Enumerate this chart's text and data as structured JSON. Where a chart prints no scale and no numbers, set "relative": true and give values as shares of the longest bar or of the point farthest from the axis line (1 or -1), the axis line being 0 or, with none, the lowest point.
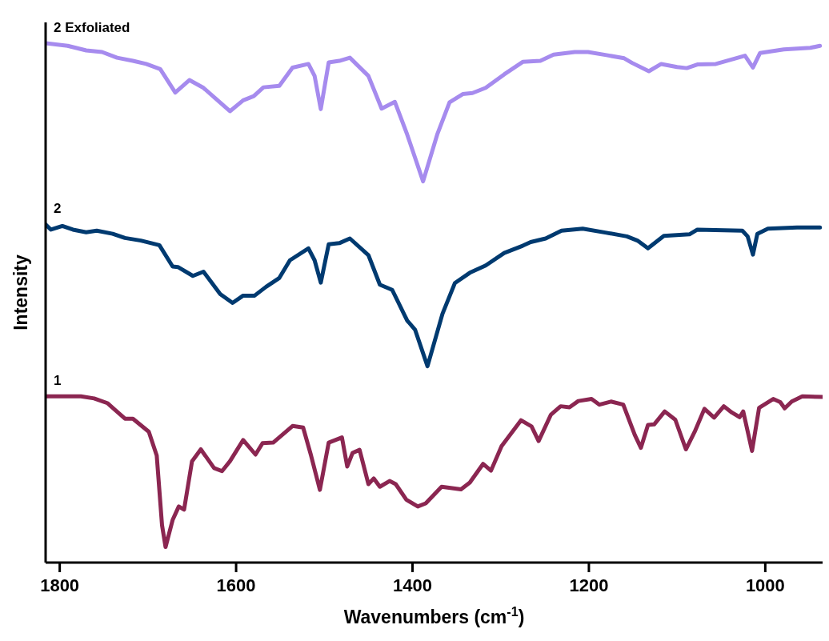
{
  "chart_data": {
    "type": "line",
    "relative": true,
    "xlabel": "Wavenumbers (cm$^{-1}$)",
    "ylabel": "Intensity",
    "xlim": [
      1816,
      935
    ],
    "xticks": [
      1800,
      1600,
      1400,
      1200,
      1000
    ],
    "marker": "none",
    "line_style": "solid",
    "tick_labels": "x",
    "series": [
      {
        "name": "2 Exfoliated",
        "color": "#a68bee",
        "x": [
          1816,
          1791,
          1770,
          1752,
          1735,
          1717,
          1702,
          1686,
          1669,
          1653,
          1637,
          1623,
          1607,
          1592,
          1580,
          1569,
          1551,
          1536,
          1518,
          1511,
          1504,
          1495,
          1483,
          1471,
          1450,
          1435,
          1420,
          1406,
          1388,
          1372,
          1358,
          1343,
          1332,
          1317,
          1296,
          1275,
          1255,
          1240,
          1216,
          1201,
          1180,
          1160,
          1151,
          1132,
          1118,
          1100,
          1089,
          1077,
          1056,
          1023,
          1014,
          1006,
          979,
          949,
          938
        ],
        "values": [
          1.0,
          0.995,
          0.986,
          0.983,
          0.972,
          0.966,
          0.96,
          0.95,
          0.905,
          0.929,
          0.914,
          0.893,
          0.869,
          0.89,
          0.898,
          0.915,
          0.918,
          0.953,
          0.96,
          0.937,
          0.873,
          0.963,
          0.966,
          0.972,
          0.937,
          0.874,
          0.887,
          0.824,
          0.734,
          0.824,
          0.886,
          0.902,
          0.904,
          0.914,
          0.94,
          0.964,
          0.966,
          0.978,
          0.983,
          0.983,
          0.977,
          0.971,
          0.962,
          0.946,
          0.96,
          0.954,
          0.952,
          0.959,
          0.96,
          0.976,
          0.953,
          0.981,
          0.988,
          0.991,
          0.995
        ]
      },
      {
        "name": "2",
        "color": "#003a70",
        "x": [
          1816,
          1810,
          1797,
          1785,
          1770,
          1758,
          1740,
          1726,
          1708,
          1687,
          1672,
          1666,
          1649,
          1637,
          1618,
          1604,
          1592,
          1579,
          1566,
          1551,
          1539,
          1518,
          1511,
          1504,
          1495,
          1483,
          1471,
          1450,
          1437,
          1423,
          1406,
          1397,
          1383,
          1366,
          1352,
          1335,
          1317,
          1296,
          1275,
          1266,
          1249,
          1231,
          1207,
          1180,
          1157,
          1145,
          1133,
          1115,
          1086,
          1077,
          1026,
          1020,
          1014,
          1009,
          997,
          964,
          938
        ],
        "values": [
          0.651,
          0.641,
          0.648,
          0.641,
          0.636,
          0.639,
          0.633,
          0.625,
          0.62,
          0.611,
          0.57,
          0.569,
          0.552,
          0.56,
          0.517,
          0.5,
          0.514,
          0.514,
          0.531,
          0.548,
          0.582,
          0.605,
          0.582,
          0.539,
          0.613,
          0.615,
          0.624,
          0.592,
          0.535,
          0.525,
          0.466,
          0.448,
          0.378,
          0.479,
          0.538,
          0.558,
          0.572,
          0.596,
          0.61,
          0.617,
          0.624,
          0.639,
          0.643,
          0.635,
          0.628,
          0.62,
          0.605,
          0.629,
          0.632,
          0.641,
          0.639,
          0.628,
          0.593,
          0.633,
          0.643,
          0.645,
          0.645
        ]
      },
      {
        "name": "1",
        "color": "#8b2651",
        "x": [
          1816,
          1776,
          1761,
          1746,
          1726,
          1717,
          1699,
          1690,
          1684,
          1680,
          1672,
          1665,
          1659,
          1650,
          1640,
          1625,
          1616,
          1607,
          1592,
          1578,
          1570,
          1558,
          1536,
          1524,
          1515,
          1505,
          1495,
          1480,
          1474,
          1468,
          1460,
          1450,
          1444,
          1437,
          1426,
          1419,
          1407,
          1394,
          1385,
          1367,
          1345,
          1335,
          1320,
          1311,
          1299,
          1277,
          1265,
          1257,
          1243,
          1232,
          1222,
          1212,
          1197,
          1188,
          1175,
          1161,
          1148,
          1141,
          1133,
          1126,
          1114,
          1102,
          1090,
          1080,
          1069,
          1058,
          1047,
          1038,
          1029,
          1025,
          1015,
          1007,
          991,
          983,
          978,
          970,
          958,
          935
        ],
        "values": [
          0.32,
          0.32,
          0.316,
          0.307,
          0.277,
          0.277,
          0.252,
          0.206,
          0.072,
          0.03,
          0.082,
          0.108,
          0.102,
          0.195,
          0.218,
          0.182,
          0.176,
          0.195,
          0.236,
          0.208,
          0.23,
          0.231,
          0.263,
          0.26,
          0.206,
          0.14,
          0.231,
          0.241,
          0.185,
          0.211,
          0.217,
          0.151,
          0.162,
          0.146,
          0.157,
          0.151,
          0.121,
          0.108,
          0.114,
          0.146,
          0.141,
          0.154,
          0.19,
          0.177,
          0.224,
          0.274,
          0.262,
          0.234,
          0.285,
          0.301,
          0.299,
          0.311,
          0.315,
          0.304,
          0.31,
          0.304,
          0.246,
          0.221,
          0.265,
          0.266,
          0.291,
          0.275,
          0.218,
          0.252,
          0.296,
          0.279,
          0.301,
          0.289,
          0.28,
          0.291,
          0.215,
          0.298,
          0.315,
          0.309,
          0.297,
          0.31,
          0.32,
          0.319
        ]
      }
    ]
  }
}
